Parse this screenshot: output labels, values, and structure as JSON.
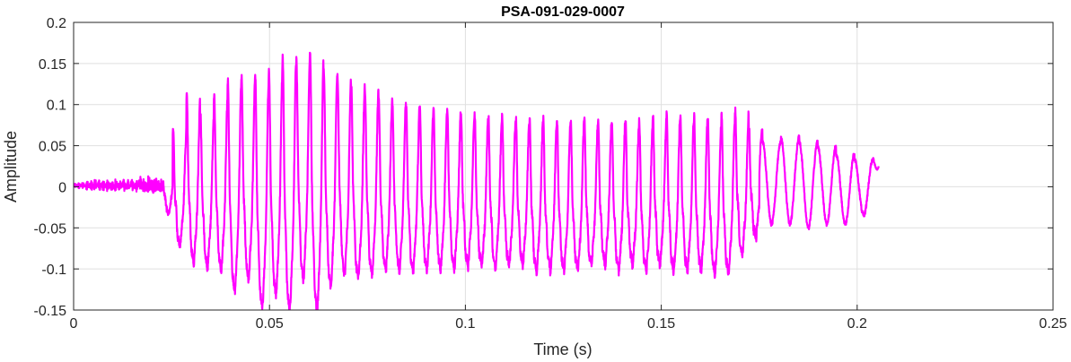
{
  "chart_data": {
    "type": "line",
    "title": "PSA-091-029-0007",
    "xlabel": "Time (s)",
    "ylabel": "Amplitude",
    "xlim": [
      0,
      0.25
    ],
    "ylim": [
      -0.15,
      0.2
    ],
    "xticks": [
      0,
      0.05,
      0.1,
      0.15,
      0.2,
      0.25
    ],
    "xtick_labels": [
      "0",
      "0.05",
      "0.1",
      "0.15",
      "0.2",
      "0.25"
    ],
    "yticks": [
      -0.15,
      -0.1,
      -0.05,
      0,
      0.05,
      0.1,
      0.15,
      0.2
    ],
    "ytick_labels": [
      "-0.15",
      "-0.1",
      "-0.05",
      "0",
      "0.05",
      "0.1",
      "0.15",
      "0.2"
    ],
    "grid": true,
    "box": true,
    "series": [
      {
        "color": "#ff00ff",
        "signal": {
          "t_start": 0,
          "t_end": 0.2055,
          "onset_time": 0.023,
          "pre_onset_noise_amplitude": 0.008,
          "cycle_times": [
            0.0253,
            0.0288,
            0.0323,
            0.0358,
            0.0393,
            0.0428,
            0.0463,
            0.0498,
            0.0533,
            0.0568,
            0.0603,
            0.0638,
            0.0673,
            0.0708,
            0.0743,
            0.0778,
            0.0813,
            0.0848,
            0.0883,
            0.0918,
            0.0953,
            0.0988,
            0.1023,
            0.1058,
            0.1093,
            0.1128,
            0.1163,
            0.1198,
            0.1233,
            0.1268,
            0.1303,
            0.1338,
            0.1373,
            0.1408,
            0.1443,
            0.1478,
            0.1513,
            0.1548,
            0.1583,
            0.1618,
            0.1653,
            0.1688,
            0.1723,
            0.1758,
            0.1805,
            0.1852,
            0.1899,
            0.1946,
            0.1993,
            0.204
          ],
          "cycle_peaks": [
            0.07,
            0.105,
            0.085,
            0.11,
            0.125,
            0.13,
            0.13,
            0.14,
            0.155,
            0.15,
            0.158,
            0.14,
            0.13,
            0.12,
            0.115,
            0.105,
            0.1,
            0.095,
            0.09,
            0.09,
            0.088,
            0.085,
            0.082,
            0.08,
            0.08,
            0.08,
            0.078,
            0.078,
            0.077,
            0.077,
            0.075,
            0.078,
            0.078,
            0.073,
            0.075,
            0.08,
            0.083,
            0.08,
            0.082,
            0.078,
            0.085,
            0.088,
            0.07,
            0.055,
            0.06,
            0.055,
            0.05,
            0.04,
            0.033,
            0.038
          ],
          "cycle_troughs": [
            -0.07,
            -0.09,
            -0.095,
            -0.1,
            -0.125,
            -0.11,
            -0.145,
            -0.13,
            -0.15,
            -0.11,
            -0.15,
            -0.12,
            -0.105,
            -0.11,
            -0.105,
            -0.1,
            -0.1,
            -0.1,
            -0.098,
            -0.098,
            -0.097,
            -0.095,
            -0.095,
            -0.095,
            -0.093,
            -0.093,
            -0.1,
            -0.1,
            -0.1,
            -0.1,
            -0.093,
            -0.093,
            -0.1,
            -0.093,
            -0.1,
            -0.093,
            -0.1,
            -0.1,
            -0.1,
            -0.103,
            -0.103,
            -0.08,
            -0.06,
            -0.045,
            -0.045,
            -0.05,
            -0.045,
            -0.045,
            -0.035,
            -0.035
          ],
          "end_value": 0.025
        }
      }
    ]
  }
}
